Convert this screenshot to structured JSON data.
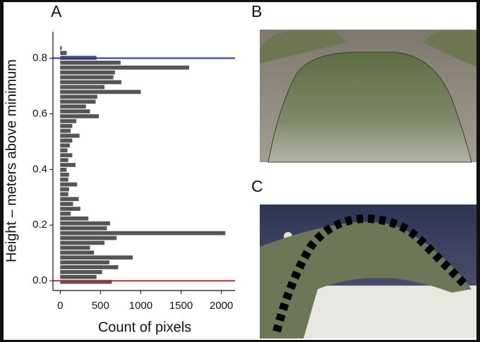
{
  "chart_data": {
    "type": "histogram",
    "orientation": "horizontal",
    "title": "A",
    "xlabel": "Count of pixels",
    "ylabel": "Height – meters above minimum",
    "bins": [
      -0.0125,
      0.005,
      0.0225,
      0.04,
      0.0575,
      0.075,
      0.0925,
      0.11,
      0.1275,
      0.145,
      0.1625,
      0.18,
      0.1975,
      0.215,
      0.2325,
      0.25,
      0.2675,
      0.285,
      0.3025,
      0.32,
      0.3375,
      0.355,
      0.3725,
      0.39,
      0.4075,
      0.425,
      0.4425,
      0.46,
      0.4775,
      0.495,
      0.5125,
      0.53,
      0.5475,
      0.565,
      0.5825,
      0.6,
      0.6175,
      0.635,
      0.6525,
      0.67,
      0.6875,
      0.705,
      0.7225,
      0.74,
      0.7575,
      0.775,
      0.7925,
      0.81,
      0.8275,
      0.845
    ],
    "values": [
      640,
      450,
      520,
      720,
      610,
      900,
      420,
      370,
      550,
      700,
      2050,
      580,
      620,
      350,
      130,
      250,
      160,
      230,
      100,
      110,
      210,
      100,
      110,
      80,
      190,
      100,
      150,
      90,
      120,
      150,
      240,
      130,
      150,
      200,
      480,
      370,
      320,
      440,
      460,
      1000,
      550,
      760,
      660,
      680,
      1600,
      750,
      450,
      80,
      20
    ],
    "color": "#555555",
    "xlim": [
      -90,
      2170
    ],
    "xticks": [
      0,
      500,
      1000,
      1500,
      2000
    ],
    "ylim": [
      -0.035,
      0.895
    ],
    "yticks": [
      {
        "value": 0,
        "label": "0.0"
      },
      0.2,
      0.4,
      0.6,
      0.8
    ],
    "hlines": [
      {
        "value": 0.8,
        "color": "#2233bb"
      },
      {
        "value": 0,
        "color": "#c02a3c"
      }
    ]
  },
  "panel_labels": [
    "B",
    "C"
  ]
}
